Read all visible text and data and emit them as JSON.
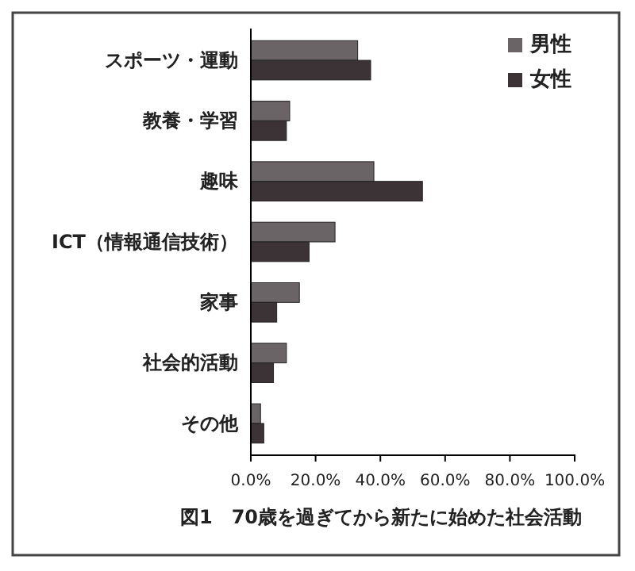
{
  "chart_data": {
    "type": "bar",
    "orientation": "horizontal",
    "title": "図1　70歳を過ぎてから新たに始めた社会活動",
    "categories": [
      "スポーツ・運動",
      "教養・学習",
      "趣味",
      "ICT（情報通信技術）",
      "家事",
      "社会的活動",
      "その他"
    ],
    "series": [
      {
        "name": "男性",
        "color": "#6a6467",
        "values": [
          33,
          12,
          38,
          26,
          15,
          11,
          3
        ]
      },
      {
        "name": "女性",
        "color": "#3b3336",
        "values": [
          37,
          11,
          53,
          18,
          8,
          7,
          4
        ]
      }
    ],
    "xlim": [
      0,
      100
    ],
    "xticks": [
      {
        "value": 0,
        "label": "0.0%"
      },
      {
        "value": 20,
        "label": "20.0%"
      },
      {
        "value": 40,
        "label": "40.0%"
      },
      {
        "value": 60,
        "label": "60.0%"
      },
      {
        "value": 80,
        "label": "80.0%"
      },
      {
        "value": 100,
        "label": "100.0%"
      }
    ],
    "grid": false,
    "legend": "top right"
  }
}
